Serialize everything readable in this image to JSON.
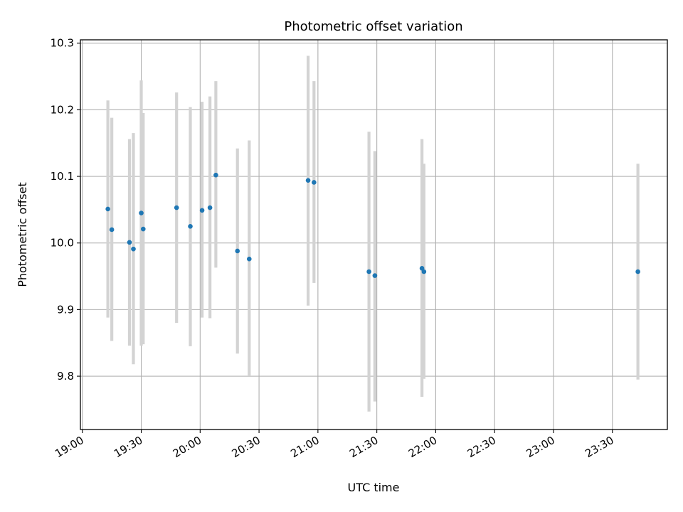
{
  "chart_data": {
    "type": "scatter",
    "title": "Photometric offset variation",
    "xlabel": "UTC time",
    "ylabel": "Photometric offset",
    "xlim": [
      "18:59",
      "23:58"
    ],
    "ylim": [
      9.72,
      10.305
    ],
    "grid": true,
    "x_ticks": [
      "19:00",
      "19:30",
      "20:00",
      "20:30",
      "21:00",
      "21:30",
      "22:00",
      "22:30",
      "23:00",
      "23:30"
    ],
    "y_ticks": [
      "9.8",
      "9.9",
      "10.0",
      "10.1",
      "10.2",
      "10.3"
    ],
    "series": [
      {
        "marker_color": "#1f77b4",
        "errorbar_color": "#d3d3d3",
        "points": [
          {
            "x": "19:13",
            "y": 10.051,
            "y_low": 9.888,
            "y_high": 10.214
          },
          {
            "x": "19:15",
            "y": 10.02,
            "y_low": 9.853,
            "y_high": 10.188
          },
          {
            "x": "19:24",
            "y": 10.001,
            "y_low": 9.846,
            "y_high": 10.156
          },
          {
            "x": "19:26",
            "y": 9.991,
            "y_low": 9.818,
            "y_high": 10.165
          },
          {
            "x": "19:30",
            "y": 10.045,
            "y_low": 9.846,
            "y_high": 10.244
          },
          {
            "x": "19:31",
            "y": 10.021,
            "y_low": 9.848,
            "y_high": 10.195
          },
          {
            "x": "19:48",
            "y": 10.053,
            "y_low": 9.88,
            "y_high": 10.226
          },
          {
            "x": "19:55",
            "y": 10.025,
            "y_low": 9.845,
            "y_high": 10.204
          },
          {
            "x": "20:01",
            "y": 10.049,
            "y_low": 9.888,
            "y_high": 10.212
          },
          {
            "x": "20:05",
            "y": 10.053,
            "y_low": 9.887,
            "y_high": 10.22
          },
          {
            "x": "20:08",
            "y": 10.102,
            "y_low": 9.963,
            "y_high": 10.243
          },
          {
            "x": "20:19",
            "y": 9.988,
            "y_low": 9.834,
            "y_high": 10.142
          },
          {
            "x": "20:25",
            "y": 9.976,
            "y_low": 9.8,
            "y_high": 10.154
          },
          {
            "x": "20:55",
            "y": 10.094,
            "y_low": 9.906,
            "y_high": 10.281
          },
          {
            "x": "20:58",
            "y": 10.091,
            "y_low": 9.94,
            "y_high": 10.243
          },
          {
            "x": "21:26",
            "y": 9.957,
            "y_low": 9.747,
            "y_high": 10.167
          },
          {
            "x": "21:29",
            "y": 9.951,
            "y_low": 9.762,
            "y_high": 10.138
          },
          {
            "x": "21:53",
            "y": 9.962,
            "y_low": 9.769,
            "y_high": 10.156
          },
          {
            "x": "21:54",
            "y": 9.957,
            "y_low": 9.796,
            "y_high": 10.119
          },
          {
            "x": "23:43",
            "y": 9.957,
            "y_low": 9.795,
            "y_high": 10.119
          }
        ]
      }
    ]
  }
}
